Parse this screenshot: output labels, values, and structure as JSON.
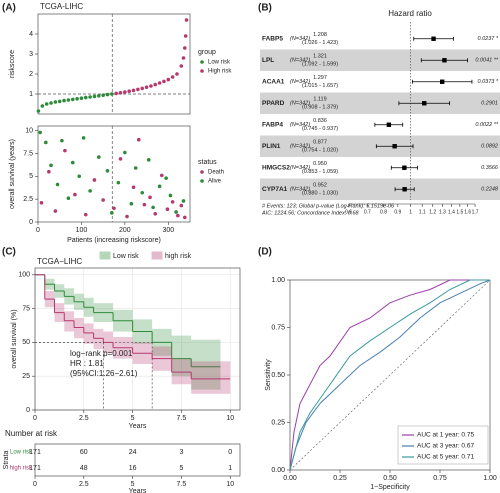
{
  "panels": [
    "(A)",
    "(B)",
    "(C)",
    "(D)"
  ],
  "chart_data": [
    {
      "type": "scatter",
      "title": "TCGA-LIHC",
      "ylabel": "riskscore",
      "legend_title": "group",
      "xlim": [
        0,
        350
      ],
      "ylim": [
        0,
        5
      ],
      "yticks": [
        1,
        2,
        3,
        4
      ],
      "cutoff_x": 171,
      "cutoff_y": 1,
      "series": [
        {
          "name": "Low risk",
          "color": "#2e8b3a",
          "x": [
            1,
            10,
            20,
            30,
            40,
            50,
            60,
            70,
            80,
            90,
            100,
            110,
            120,
            130,
            140,
            150,
            160,
            170
          ],
          "values": [
            0.15,
            0.4,
            0.5,
            0.55,
            0.6,
            0.63,
            0.67,
            0.7,
            0.73,
            0.76,
            0.79,
            0.82,
            0.85,
            0.88,
            0.91,
            0.94,
            0.97,
            1.0
          ]
        },
        {
          "name": "High risk",
          "color": "#b5396e",
          "x": [
            180,
            190,
            200,
            210,
            220,
            230,
            240,
            250,
            260,
            270,
            280,
            290,
            300,
            310,
            320,
            330,
            335,
            338,
            340,
            342
          ],
          "values": [
            1.03,
            1.06,
            1.1,
            1.14,
            1.18,
            1.23,
            1.28,
            1.34,
            1.4,
            1.47,
            1.55,
            1.63,
            1.72,
            1.85,
            2.0,
            2.4,
            2.8,
            3.3,
            3.9,
            4.7
          ]
        }
      ]
    },
    {
      "type": "scatter",
      "xlabel": "Patients (increasing riskscore)",
      "ylabel": "overall survival (years)",
      "legend_title": "status",
      "xlim": [
        0,
        350
      ],
      "xticks": [
        0,
        100,
        200,
        300
      ],
      "ylim": [
        0,
        10.5
      ],
      "yticks": [
        0,
        2.5,
        5,
        7.5,
        10
      ],
      "cutoff_x": 171,
      "series": [
        {
          "name": "Death",
          "color": "#b5396e",
          "x": [
            8,
            25,
            40,
            62,
            85,
            110,
            130,
            150,
            175,
            190,
            205,
            220,
            232,
            245,
            258,
            270,
            285,
            298,
            310,
            322,
            330,
            338
          ],
          "values": [
            2.1,
            5.5,
            1.2,
            7.8,
            3.0,
            0.8,
            4.6,
            2.4,
            1.5,
            6.9,
            0.6,
            3.8,
            9.0,
            1.9,
            2.7,
            0.9,
            5.1,
            1.4,
            2.2,
            0.7,
            1.8,
            0.5
          ]
        },
        {
          "name": "Alive",
          "color": "#2e8b3a",
          "x": [
            5,
            18,
            30,
            45,
            55,
            70,
            80,
            95,
            105,
            120,
            140,
            160,
            170,
            185,
            200,
            215,
            225,
            240,
            255,
            265,
            280,
            295,
            305,
            318,
            335
          ],
          "values": [
            9.8,
            8.7,
            6.2,
            4.1,
            8.9,
            2.6,
            6.5,
            5.0,
            9.2,
            3.4,
            7.1,
            5.6,
            1.0,
            4.3,
            7.6,
            2.0,
            5.9,
            3.2,
            6.8,
            1.6,
            3.9,
            4.8,
            2.9,
            1.1,
            2.3
          ]
        }
      ]
    },
    {
      "type": "forest",
      "title": "Hazard ratio",
      "log_scale": true,
      "xlim": [
        0.55,
        1.8
      ],
      "xticks": [
        0.6,
        0.7,
        0.8,
        0.9,
        1,
        1.1,
        1.2,
        1.3,
        1.4,
        1.5,
        1.6,
        1.7
      ],
      "reference": 1,
      "color": "#000000",
      "shade": "#d3d3d3",
      "genes": [
        "FABP5",
        "LPL",
        "ACAA1",
        "PPARD",
        "FABP4",
        "PLIN1",
        "HMGCS2",
        "CYP7A1"
      ],
      "n_labels": [
        "(N=342)",
        "(N=342)",
        "(N=342)",
        "(N=342)",
        "(N=342)",
        "(N=342)",
        "(N=342)",
        "(N=342)"
      ],
      "values": [
        1.208,
        1.321,
        1.297,
        1.119,
        0.836,
        0.877,
        0.95,
        0.952
      ],
      "value_labels": [
        "1.208",
        "1.321",
        "1.297",
        "1.119",
        "0.836",
        "0.877",
        "0.950",
        "0.952"
      ],
      "lower": [
        1.026,
        1.092,
        1.015,
        0.908,
        0.745,
        0.754,
        0.853,
        0.88
      ],
      "upper": [
        1.423,
        1.599,
        1.657,
        1.379,
        0.937,
        1.02,
        1.059,
        1.03
      ],
      "ci_labels": [
        "(1.026 - 1.423)",
        "(1.092 - 1.599)",
        "(1.015 - 1.657)",
        "(0.908 - 1.379)",
        "(0.745 - 0.937)",
        "(0.754 - 1.020)",
        "(0.853 - 1.059)",
        "(0.880 - 1.030)"
      ],
      "p_labels": [
        "0.0237 *",
        "0.0041 **",
        "0.0373 *",
        "0.2901",
        "0.0022 **",
        "0.0892",
        "0.3566",
        "0.2248"
      ],
      "footnotes": [
        "# Events: 123; Global p-value (Log-Rank): 5.1519e-06",
        "AIC: 1224.56; Concordance Index: 0.68"
      ]
    },
    {
      "type": "survival",
      "title": "TCGA−LIHC",
      "ylabel": "overall survival (%)",
      "xlabel": "Years",
      "xlim": [
        0,
        10.5
      ],
      "xticks": [
        0,
        2.5,
        5,
        7.5,
        10
      ],
      "ylim": [
        0,
        105
      ],
      "yticks": [
        0,
        25,
        50,
        75,
        100
      ],
      "annotations": [
        "log−rank p=0.001",
        "HR : 1.81",
        "(95%CI:1.26−2.61)"
      ],
      "series": [
        {
          "name": "Low risk",
          "color": "#2e8b3a",
          "x": [
            0,
            0.5,
            1,
            1.5,
            2,
            2.5,
            3,
            4,
            5,
            6,
            7,
            8,
            9.5
          ],
          "values": [
            100,
            93,
            88,
            84,
            80,
            76,
            72,
            66,
            58,
            50,
            38,
            32,
            32
          ],
          "lower": [
            100,
            89,
            83,
            78,
            74,
            69,
            65,
            58,
            49,
            40,
            25,
            15,
            15
          ],
          "upper": [
            100,
            97,
            93,
            90,
            86,
            83,
            79,
            74,
            67,
            60,
            55,
            52,
            52
          ]
        },
        {
          "name": "high risk",
          "color": "#b5396e",
          "x": [
            0,
            0.5,
            1,
            1.5,
            2,
            2.5,
            3,
            3.5,
            4,
            5,
            6,
            7,
            8,
            10
          ],
          "values": [
            100,
            82,
            72,
            66,
            61,
            57,
            53,
            50,
            46,
            42,
            38,
            28,
            23,
            23
          ],
          "lower": [
            100,
            76,
            65,
            58,
            53,
            49,
            45,
            42,
            38,
            34,
            29,
            19,
            12,
            12
          ],
          "upper": [
            100,
            88,
            79,
            73,
            68,
            64,
            60,
            58,
            54,
            50,
            47,
            38,
            36,
            36
          ]
        }
      ]
    },
    {
      "type": "table",
      "title": "Number at risk",
      "ylabel": "Strata",
      "xlabel": "Years",
      "xlim": [
        0,
        10.5
      ],
      "xticks": [
        0,
        2.5,
        5,
        7.5,
        10
      ],
      "series": [
        {
          "name": "Low risk",
          "color": "#2e8b3a",
          "values": [
            171,
            60,
            24,
            3,
            0
          ]
        },
        {
          "name": "high risk",
          "color": "#b5396e",
          "values": [
            171,
            48,
            16,
            5,
            1
          ]
        }
      ]
    },
    {
      "type": "line",
      "xlabel": "1−Specificity",
      "ylabel": "Sensitivity",
      "xlim": [
        0,
        1
      ],
      "ylim": [
        0,
        1
      ],
      "xticks": [
        {
          "value": 0,
          "label": "0.00"
        },
        {
          "value": 0.25,
          "label": "0.25"
        },
        {
          "value": 0.5,
          "label": "0.50"
        },
        {
          "value": 0.75,
          "label": "0.75"
        },
        {
          "value": 1,
          "label": "1.00"
        }
      ],
      "yticks": [
        {
          "value": 0,
          "label": "0.00"
        },
        {
          "value": 0.25,
          "label": "0.25"
        },
        {
          "value": 0.5,
          "label": "0.50"
        },
        {
          "value": 0.75,
          "label": "0.75"
        },
        {
          "value": 1,
          "label": "1.00"
        }
      ],
      "series": [
        {
          "name": "AUC at 1 year: 0.75",
          "color": "#9b3fa8",
          "x": [
            0,
            0.02,
            0.05,
            0.1,
            0.15,
            0.2,
            0.3,
            0.4,
            0.5,
            0.6,
            0.7,
            0.8,
            0.9,
            1
          ],
          "values": [
            0,
            0.2,
            0.35,
            0.45,
            0.55,
            0.6,
            0.75,
            0.8,
            0.88,
            0.92,
            0.95,
            1,
            1,
            1
          ]
        },
        {
          "name": "AUC at 3 year: 0.67",
          "color": "#4a7fb5",
          "x": [
            0,
            0.03,
            0.08,
            0.15,
            0.25,
            0.35,
            0.45,
            0.55,
            0.65,
            0.75,
            0.85,
            0.95,
            1
          ],
          "values": [
            0,
            0.12,
            0.25,
            0.35,
            0.45,
            0.55,
            0.62,
            0.7,
            0.8,
            0.88,
            0.93,
            0.98,
            1
          ]
        },
        {
          "name": "AUC at 5 year: 0.71",
          "color": "#3a9a9a",
          "x": [
            0,
            0.05,
            0.1,
            0.2,
            0.3,
            0.4,
            0.5,
            0.6,
            0.7,
            0.8,
            0.9,
            1
          ],
          "values": [
            0,
            0.2,
            0.3,
            0.45,
            0.6,
            0.68,
            0.75,
            0.82,
            0.88,
            0.95,
            1,
            1
          ]
        }
      ]
    }
  ]
}
